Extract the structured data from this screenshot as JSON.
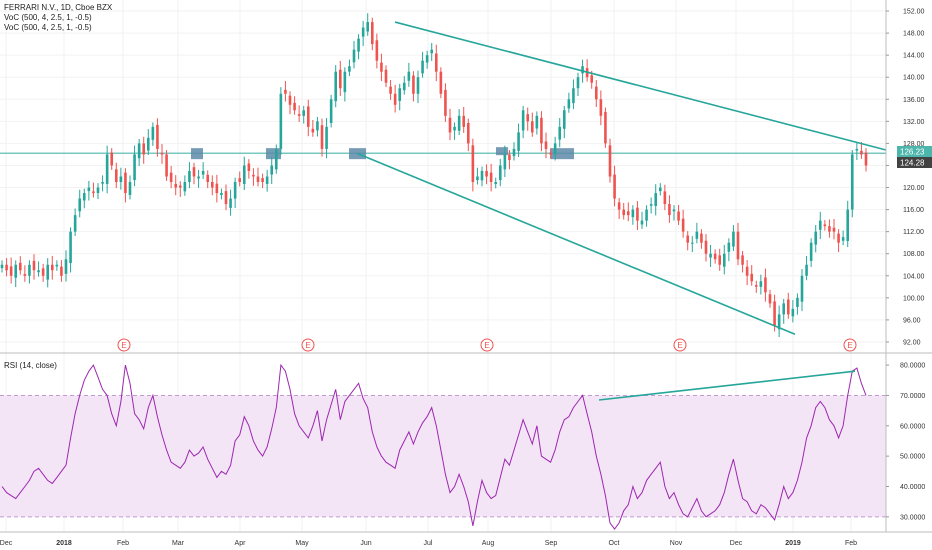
{
  "header": {
    "symbol_line": "FERRARI N.V., 1D, Cboe BZX",
    "indicator_1": "VoC (500, 4, 2.5, 1, -0.5)",
    "indicator_2": "VoC (500, 4, 2.5, 1, -0.5)"
  },
  "rsi_header": {
    "label": "RSI (14, close)"
  },
  "price_badges": {
    "level_line": "126.23",
    "last_price": "124.28",
    "level_color": "#4db6ac",
    "last_color": "#424242"
  },
  "earnings_marker": "E",
  "colors": {
    "up": "#26a69a",
    "down": "#ef5350",
    "trendline": "#26a69a",
    "rsi_line": "#9c27b0",
    "rsi_band": "#f3e5f5",
    "box": "#5d8aa8"
  },
  "chart_data": [
    {
      "type": "candlestick",
      "y_axis": {
        "ticks": [
          "152.00",
          "148.00",
          "144.00",
          "140.00",
          "136.00",
          "132.00",
          "128.00",
          "124.00",
          "120.00",
          "116.00",
          "112.00",
          "108.00",
          "104.00",
          "100.00",
          "96.00",
          "92.00"
        ],
        "ylim": [
          90,
          154
        ]
      },
      "x_axis": {
        "ticks": [
          "Dec",
          "2018",
          "Feb",
          "Mar",
          "Apr",
          "May",
          "Jun",
          "Jul",
          "Aug",
          "Sep",
          "Oct",
          "Nov",
          "Dec",
          "2019",
          "Feb"
        ]
      },
      "trendlines": [
        {
          "from": [
            "Jun",
            150
          ],
          "to": [
            "Feb",
            127.4
          ]
        },
        {
          "from": [
            "May",
            126.2
          ],
          "to": [
            "Jan",
            93.4
          ]
        }
      ],
      "horizontal_level": 126.23,
      "earnings_events": [
        "Feb",
        "May",
        "Aug",
        "Nov",
        "Feb"
      ],
      "closes": [
        106,
        105,
        104,
        106,
        105,
        104,
        106,
        105,
        105,
        104,
        106,
        105,
        106,
        104,
        107,
        112,
        115,
        118,
        119,
        120,
        119,
        120,
        121,
        126,
        124,
        121,
        122,
        119,
        121,
        126,
        128,
        126,
        129,
        131,
        127,
        126,
        122,
        121,
        120,
        120,
        121,
        123,
        122,
        122,
        123,
        121,
        120,
        119,
        119,
        117,
        118,
        121,
        121,
        124,
        123,
        122,
        121,
        121,
        122,
        124,
        127,
        137,
        137,
        135,
        134,
        133,
        134,
        131,
        130,
        132,
        127,
        131,
        136,
        141,
        138,
        141,
        142,
        145,
        147,
        149,
        150,
        146,
        143,
        141,
        139,
        137,
        135,
        138,
        139,
        141,
        137,
        140,
        143,
        144,
        145,
        141,
        137,
        133,
        130,
        131,
        133,
        131,
        128,
        121,
        122,
        123,
        122,
        121,
        121,
        124,
        126,
        125,
        127,
        130,
        134,
        132,
        130,
        133,
        128,
        127,
        126,
        128,
        131,
        134,
        136,
        138,
        140,
        142,
        140,
        139,
        136,
        133,
        128,
        122,
        118,
        116,
        115,
        115,
        116,
        114,
        114,
        116,
        117,
        119,
        120,
        117,
        115,
        116,
        114,
        112,
        110,
        110,
        112,
        110,
        108,
        108,
        107,
        106,
        108,
        110,
        112,
        107,
        106,
        104,
        103,
        102,
        103,
        101,
        99,
        95,
        97,
        99,
        97,
        98,
        100,
        104,
        106,
        110,
        112,
        114,
        113,
        112,
        112,
        110,
        111,
        116,
        126,
        127,
        126,
        124
      ]
    },
    {
      "type": "line",
      "title": "RSI (14, close)",
      "y_axis": {
        "ticks": [
          "80.0000",
          "70.0000",
          "60.0000",
          "50.0000",
          "40.0000",
          "30.0000"
        ],
        "ylim": [
          25,
          83
        ]
      },
      "band": [
        30,
        70
      ],
      "trendlines": [
        {
          "from": [
            "Sep",
            68.5
          ],
          "to": [
            "Feb",
            78
          ]
        }
      ],
      "values": [
        40,
        38,
        37,
        36,
        38,
        40,
        42,
        45,
        46,
        44,
        42,
        41,
        43,
        45,
        47,
        56,
        64,
        70,
        75,
        78,
        80,
        76,
        72,
        70,
        64,
        60,
        68,
        80,
        74,
        64,
        62,
        59,
        66,
        70,
        63,
        57,
        52,
        48,
        47,
        46,
        48,
        52,
        50,
        51,
        53,
        49,
        46,
        43,
        45,
        44,
        47,
        55,
        57,
        63,
        60,
        55,
        52,
        50,
        53,
        59,
        66,
        80,
        78,
        72,
        64,
        60,
        58,
        56,
        60,
        65,
        55,
        62,
        67,
        72,
        62,
        68,
        70,
        72,
        74,
        69,
        66,
        58,
        53,
        50,
        48,
        47,
        46,
        52,
        55,
        58,
        54,
        58,
        61,
        63,
        66,
        60,
        52,
        44,
        38,
        40,
        44,
        40,
        35,
        27,
        35,
        42,
        38,
        36,
        37,
        43,
        49,
        47,
        52,
        57,
        62,
        58,
        54,
        60,
        50,
        49,
        48,
        52,
        58,
        62,
        63,
        66,
        68,
        70,
        64,
        58,
        50,
        44,
        37,
        28,
        26,
        28,
        32,
        34,
        40,
        36,
        38,
        42,
        44,
        46,
        48,
        40,
        36,
        38,
        34,
        31,
        30,
        33,
        36,
        32,
        30,
        31,
        32,
        34,
        38,
        44,
        49,
        42,
        36,
        35,
        32,
        31,
        34,
        33,
        31,
        29,
        34,
        40,
        36,
        38,
        42,
        48,
        56,
        60,
        66,
        68,
        66,
        62,
        60,
        56,
        60,
        70,
        78,
        79,
        74,
        70
      ]
    }
  ]
}
